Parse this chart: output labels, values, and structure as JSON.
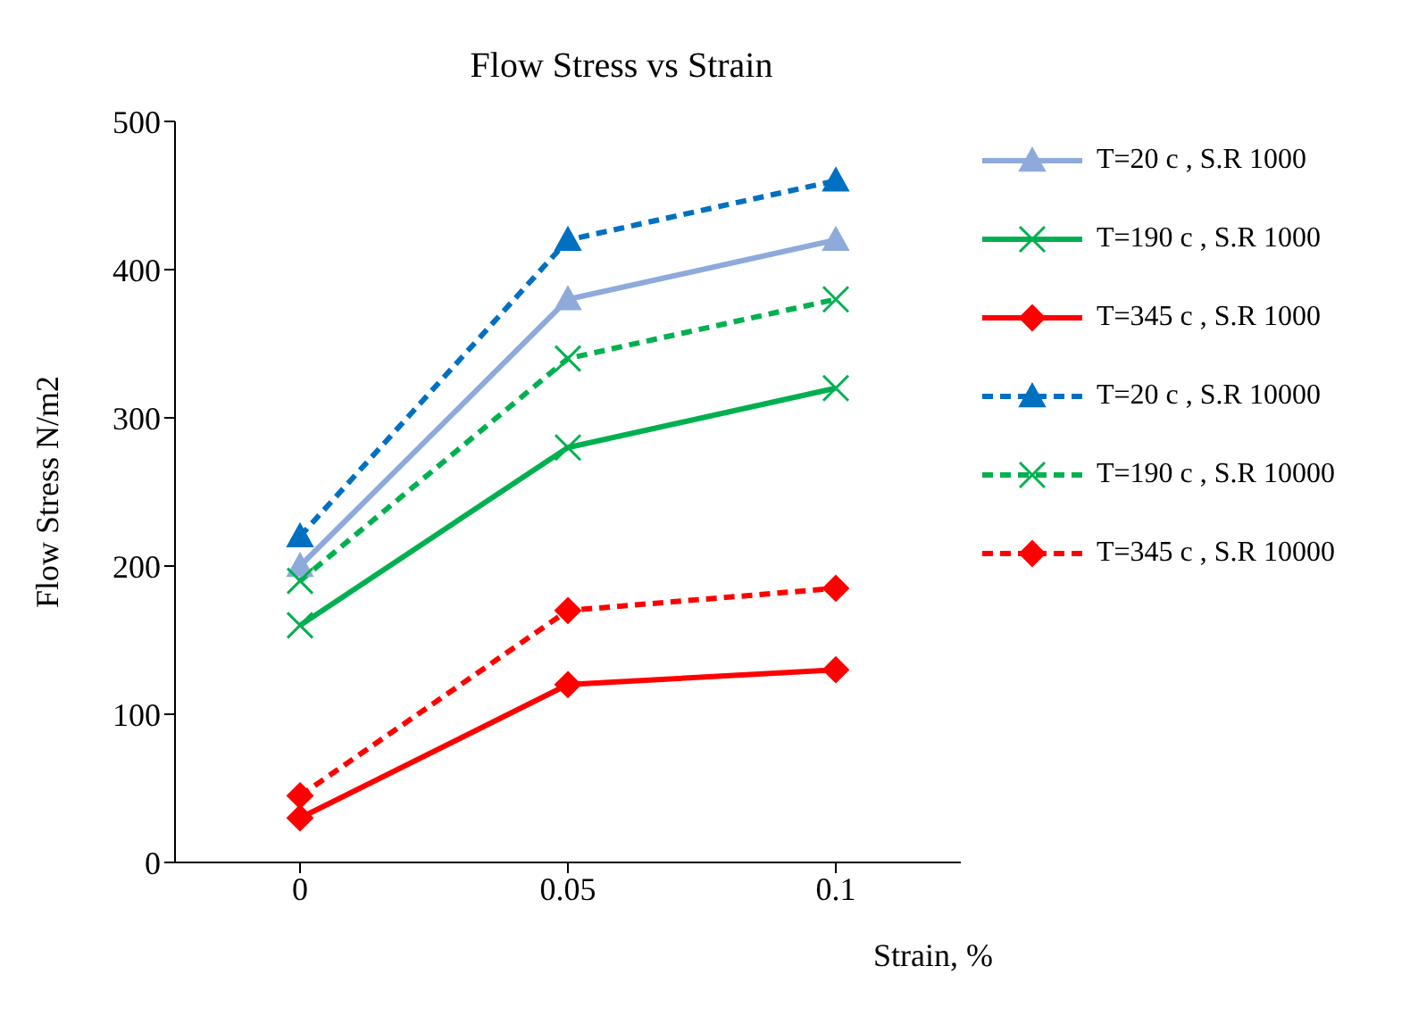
{
  "chart_data": {
    "type": "line",
    "title": "Flow Stress vs Strain",
    "xlabel": "Strain, %",
    "ylabel": "Flow Stress N/m2",
    "categories": [
      "0",
      "0.05",
      "0.1"
    ],
    "series": [
      {
        "name": "T=20 c , S.R 1000",
        "color": "#8eaadb",
        "values": [
          200,
          380,
          420
        ],
        "marker": "triangle",
        "line_style": "solid"
      },
      {
        "name": "T=190 c , S.R 1000",
        "color": "#00b050",
        "values": [
          160,
          280,
          320
        ],
        "marker": "cross",
        "line_style": "solid"
      },
      {
        "name": "T=345 c , S.R 1000",
        "color": "#ff0000",
        "values": [
          30,
          120,
          130
        ],
        "marker": "diamond",
        "line_style": "solid"
      },
      {
        "name": "T=20 c , S.R 10000",
        "color": "#0070c0",
        "values": [
          220,
          420,
          460
        ],
        "marker": "triangle",
        "line_style": "dashed"
      },
      {
        "name": "T=190 c , S.R 10000",
        "color": "#00b050",
        "values": [
          190,
          340,
          380
        ],
        "marker": "cross",
        "line_style": "dashed"
      },
      {
        "name": "T=345 c , S.R 10000",
        "color": "#ff0000",
        "values": [
          45,
          170,
          185
        ],
        "marker": "diamond",
        "line_style": "dashed"
      }
    ],
    "ylim": [
      0,
      500
    ],
    "yticks": [
      0,
      100,
      200,
      300,
      400,
      500
    ],
    "grid": false,
    "legend": "right"
  }
}
